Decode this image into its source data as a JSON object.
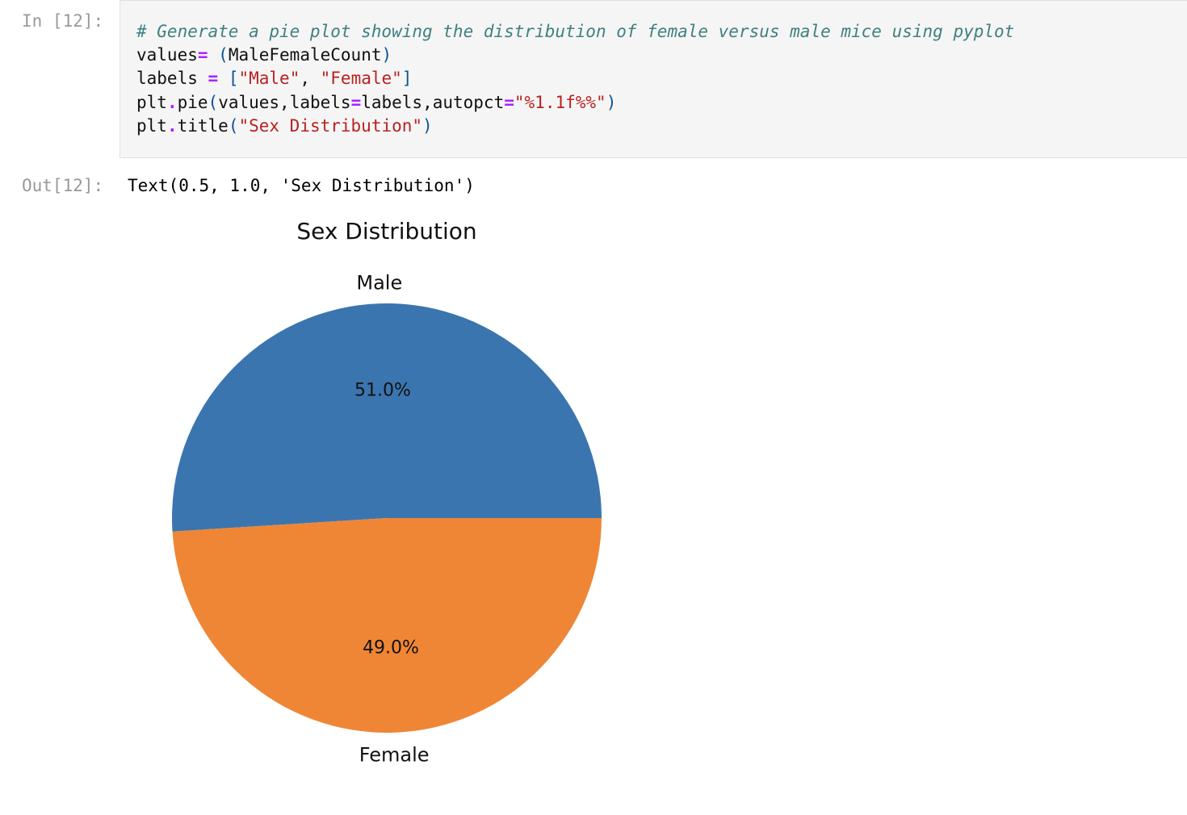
{
  "cell_in": {
    "prompt": "In [12]:",
    "lines": [
      [
        {
          "t": "# Generate a pie plot showing the distribution of female versus male mice using pyplot",
          "c": "cm"
        }
      ],
      [
        {
          "t": "values",
          "c": "plain"
        },
        {
          "t": "=",
          "c": "op"
        },
        {
          "t": " ",
          "c": "plain"
        },
        {
          "t": "(",
          "c": "paren"
        },
        {
          "t": "MaleFemaleCount",
          "c": "plain"
        },
        {
          "t": ")",
          "c": "paren"
        }
      ],
      [
        {
          "t": "labels ",
          "c": "plain"
        },
        {
          "t": "=",
          "c": "op"
        },
        {
          "t": " ",
          "c": "plain"
        },
        {
          "t": "[",
          "c": "paren"
        },
        {
          "t": "\"Male\"",
          "c": "str"
        },
        {
          "t": ", ",
          "c": "plain"
        },
        {
          "t": "\"Female\"",
          "c": "str"
        },
        {
          "t": "]",
          "c": "paren"
        }
      ],
      [
        {
          "t": "plt",
          "c": "plain"
        },
        {
          "t": ".",
          "c": "op"
        },
        {
          "t": "pie",
          "c": "plain"
        },
        {
          "t": "(",
          "c": "paren"
        },
        {
          "t": "values,labels",
          "c": "plain"
        },
        {
          "t": "=",
          "c": "op"
        },
        {
          "t": "labels,autopct",
          "c": "plain"
        },
        {
          "t": "=",
          "c": "op"
        },
        {
          "t": "\"%1.1f%%\"",
          "c": "str"
        },
        {
          "t": ")",
          "c": "paren"
        }
      ],
      [
        {
          "t": "plt",
          "c": "plain"
        },
        {
          "t": ".",
          "c": "op"
        },
        {
          "t": "title",
          "c": "plain"
        },
        {
          "t": "(",
          "c": "paren"
        },
        {
          "t": "\"Sex Distribution\"",
          "c": "str"
        },
        {
          "t": ")",
          "c": "paren"
        }
      ]
    ]
  },
  "cell_out": {
    "prompt": "Out[12]:",
    "text": "Text(0.5, 1.0, 'Sex Distribution')"
  },
  "chart_data": {
    "type": "pie",
    "title": "Sex Distribution",
    "categories": [
      "Male",
      "Female"
    ],
    "values": [
      51.0,
      49.0
    ],
    "pct_labels": [
      "51.0%",
      "49.0%"
    ],
    "colors": [
      "#3b75af",
      "#ef8636"
    ]
  }
}
